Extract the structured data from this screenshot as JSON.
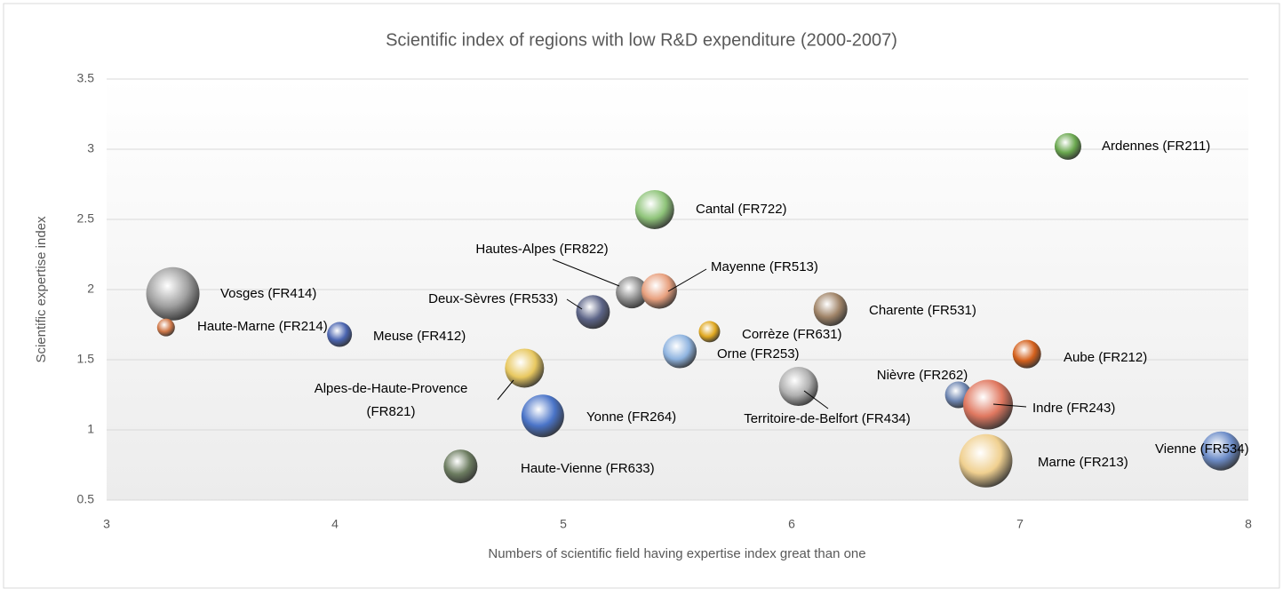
{
  "chart_data": {
    "type": "bubble",
    "title": "Scientific index of regions with low R&D expenditure (2000-2007)",
    "x_label": "Numbers of scientific field having expertise index great than one",
    "y_label": "Scientific expertise index",
    "labels": [
      "Ardennes (FR211)",
      "Cantal (FR722)",
      "Hautes-Alpes (FR822)",
      "Mayenne (FR513)",
      "Vosges (FR414)",
      "Deux-Sèvres (FR533)",
      "Charente (FR531)",
      "Haute-Marne (FR214)",
      "Meuse (FR412)",
      "Corrèze (FR631)",
      "Orne (FR253)",
      "Aube (FR212)",
      "Alpes-de-Haute-Provence (FR821)",
      "Territoire-de-Belfort (FR434)",
      "Nièvre (FR262)",
      "Indre (FR243)",
      "Yonne (FR264)",
      "Haute-Vienne (FR633)",
      "Marne (FR213)",
      "Vienne (FR534)"
    ],
    "x": [
      7.21,
      5.4,
      5.3,
      5.42,
      3.29,
      5.13,
      6.17,
      3.26,
      4.02,
      5.64,
      5.51,
      7.03,
      4.83,
      6.03,
      6.73,
      6.86,
      4.91,
      4.55,
      6.85,
      7.88
    ],
    "values": [
      3.02,
      2.57,
      1.98,
      1.99,
      1.97,
      1.84,
      1.86,
      1.73,
      1.68,
      1.7,
      1.56,
      1.54,
      1.44,
      1.31,
      1.25,
      1.18,
      1.1,
      0.74,
      0.78,
      0.85
    ],
    "sizes": [
      225,
      484,
      324,
      400,
      900,
      361,
      361,
      100,
      196,
      144,
      361,
      256,
      484,
      484,
      225,
      784,
      576,
      361,
      900,
      484
    ],
    "colors": [
      "#6aa84f",
      "#8fc47a",
      "#8c8c8c",
      "#e8a07e",
      "#a0a0a0",
      "#5c6487",
      "#a08468",
      "#d07848",
      "#4a64b0",
      "#e0a820",
      "#8fb4e0",
      "#d4601c",
      "#e8c860",
      "#b0b0b0",
      "#6c84b0",
      "#e07860",
      "#4a74c8",
      "#6c7c60",
      "#f0d090",
      "#6c8cc8"
    ],
    "xlim": [
      3,
      8
    ],
    "xticks": [
      3,
      4,
      5,
      6,
      7,
      8
    ],
    "ylim": [
      0.5,
      3.5
    ],
    "yticks": [
      0.5,
      1,
      1.5,
      2,
      2.5,
      3,
      3.5
    ],
    "grid": true
  }
}
